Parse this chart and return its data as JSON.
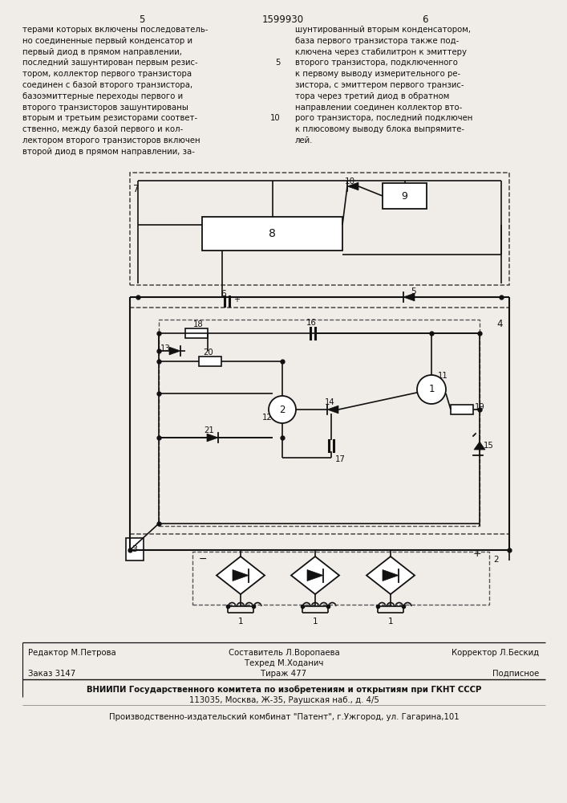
{
  "bg_color": "#f0ede8",
  "page_num_left": "5",
  "page_num_center": "1599930",
  "page_num_right": "6",
  "text_left": "терами которых включены последователь-\nно соединенные первый конденсатор и\nпервый диод в прямом направлении,\nпоследний зашунтирован первым резис-\nтором, коллектор первого транзистора\nсоединен с базой второго транзистора,\nбазоэмиттерные переходы первого и\nвторого транзисторов зашунтированы\nвторым и третьим резисторами соответ-\nственно, между базой первого и кол-\nлектором второго транзисторов включен\nвторой диод в прямом направлении, за-",
  "text_right": "шунтированный вторым конденсатором,\nбаза первого транзистора также под-\nключена через стабилитрон к эмиттеру\nвторого транзистора, подключенного\nк первому выводу измерительного ре-\nзистора, с эмиттером первого транзис-\nтора через третий диод в обратном\nнаправлении соединен коллектор вто-\nрого транзистора, последний подключен\nк плюсовому выводу блока выпрямите-\nлей.",
  "footer_line1_left": "Редактор М.Петрова",
  "footer_line1_mid": "Составитель Л.Воропаева",
  "footer_line1_right": "Корректор Л.Бескид",
  "footer_line2_mid": "Техред М.Ходанич",
  "footer_line3_left": "Заказ 3147",
  "footer_line3_mid": "Тираж 477",
  "footer_line3_right": "Подписное",
  "footer_line4": "ВНИИПИ Государственного комитета по изобретениям и открытиям при ГКНТ СССР",
  "footer_line5": "113035, Москва, Ж-35, Раушская наб., д. 4/5",
  "footer_line6": "Производственно-издательский комбинат \"Патент\", г.Ужгород, ул. Гагарина,101"
}
